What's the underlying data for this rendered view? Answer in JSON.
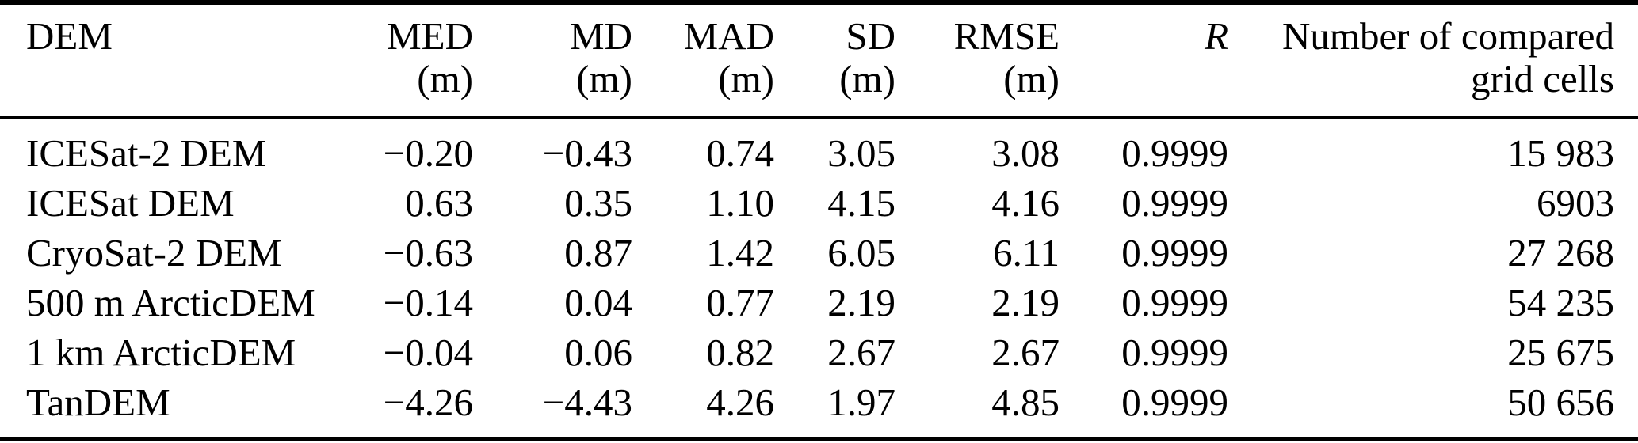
{
  "table": {
    "colors": {
      "text": "#000000",
      "rule": "#000000",
      "background": "#ffffff"
    },
    "columns": [
      {
        "label": "DEM",
        "unit": ""
      },
      {
        "label": "MED",
        "unit": "(m)"
      },
      {
        "label": "MD",
        "unit": "(m)"
      },
      {
        "label": "MAD",
        "unit": "(m)"
      },
      {
        "label": "SD",
        "unit": "(m)"
      },
      {
        "label": "RMSE",
        "unit": "(m)"
      },
      {
        "label": "R",
        "unit": ""
      },
      {
        "label": "Number of compared",
        "unit": "grid cells"
      }
    ],
    "rows": [
      {
        "dem": "ICESat-2 DEM",
        "med": "−0.20",
        "md": "−0.43",
        "mad": "0.74",
        "sd": "3.05",
        "rmse": "3.08",
        "r": "0.9999",
        "n": "15 983"
      },
      {
        "dem": "ICESat DEM",
        "med": "0.63",
        "md": "0.35",
        "mad": "1.10",
        "sd": "4.15",
        "rmse": "4.16",
        "r": "0.9999",
        "n": "6903"
      },
      {
        "dem": "CryoSat-2 DEM",
        "med": "−0.63",
        "md": "0.87",
        "mad": "1.42",
        "sd": "6.05",
        "rmse": "6.11",
        "r": "0.9999",
        "n": "27 268"
      },
      {
        "dem": "500 m ArcticDEM",
        "med": "−0.14",
        "md": "0.04",
        "mad": "0.77",
        "sd": "2.19",
        "rmse": "2.19",
        "r": "0.9999",
        "n": "54 235"
      },
      {
        "dem": "1 km ArcticDEM",
        "med": "−0.04",
        "md": "0.06",
        "mad": "0.82",
        "sd": "2.67",
        "rmse": "2.67",
        "r": "0.9999",
        "n": "25 675"
      },
      {
        "dem": "TanDEM",
        "med": "−4.26",
        "md": "−4.43",
        "mad": "4.26",
        "sd": "1.97",
        "rmse": "4.85",
        "r": "0.9999",
        "n": "50 656"
      }
    ]
  }
}
